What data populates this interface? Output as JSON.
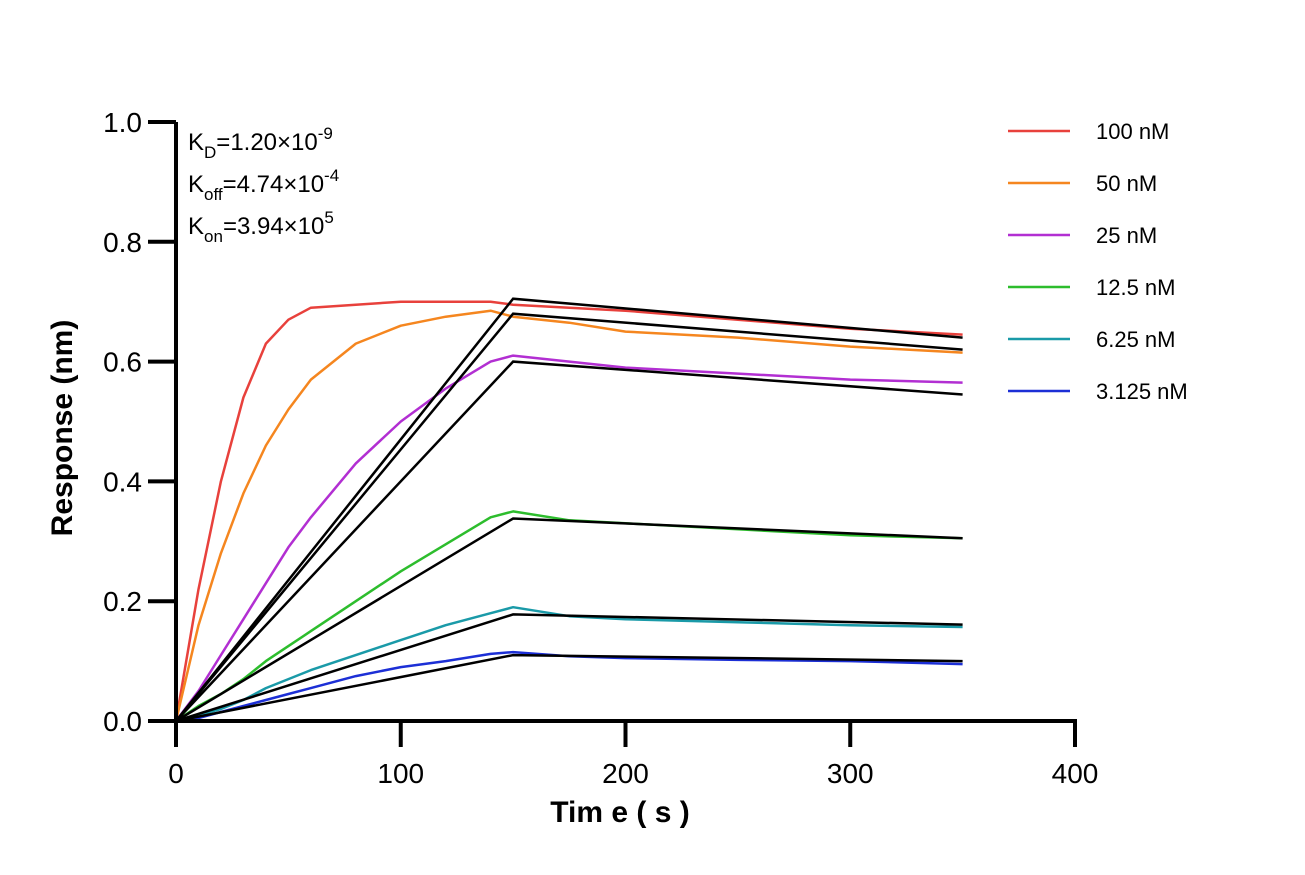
{
  "chart_data": {
    "type": "line",
    "xlabel": "Tim e ( s )",
    "ylabel": "Response (nm)",
    "xlim": [
      0,
      400
    ],
    "ylim": [
      0,
      1.0
    ],
    "x_ticks": [
      "0",
      "100",
      "200",
      "300",
      "400"
    ],
    "y_ticks": [
      "0.0",
      "0.2",
      "0.4",
      "0.6",
      "0.8",
      "1.0"
    ],
    "grid": false,
    "legend_position": "top-right",
    "annotations": {
      "kd": {
        "k": "K",
        "sub": "D",
        "eq": "=1.20×10",
        "sup": "-9"
      },
      "koff": {
        "k": "K",
        "sub": "off",
        "eq": "=4.74×10",
        "sup": "-4"
      },
      "kon": {
        "k": "K",
        "sub": "on",
        "eq": "=3.94×10",
        "sup": "5"
      }
    },
    "association_end_s": 150,
    "end_s": 350,
    "series": [
      {
        "name": "100 nM",
        "color": "#e8413c",
        "x": [
          0,
          10,
          20,
          30,
          40,
          50,
          60,
          80,
          100,
          120,
          140,
          150,
          175,
          200,
          250,
          300,
          350
        ],
        "values": [
          0,
          0.22,
          0.4,
          0.54,
          0.63,
          0.67,
          0.69,
          0.695,
          0.7,
          0.7,
          0.7,
          0.695,
          0.69,
          0.685,
          0.67,
          0.655,
          0.645
        ]
      },
      {
        "name": "50 nM",
        "color": "#f5861f",
        "x": [
          0,
          10,
          20,
          30,
          40,
          50,
          60,
          80,
          100,
          120,
          140,
          150,
          175,
          200,
          250,
          300,
          350
        ],
        "values": [
          0,
          0.16,
          0.28,
          0.38,
          0.46,
          0.52,
          0.57,
          0.63,
          0.66,
          0.675,
          0.685,
          0.675,
          0.665,
          0.65,
          0.64,
          0.625,
          0.615
        ]
      },
      {
        "name": "25 nM",
        "color": "#b22fd2",
        "x": [
          0,
          10,
          20,
          30,
          40,
          50,
          60,
          80,
          100,
          120,
          140,
          150,
          175,
          200,
          250,
          300,
          350
        ],
        "values": [
          0,
          0.05,
          0.11,
          0.17,
          0.23,
          0.29,
          0.34,
          0.43,
          0.5,
          0.555,
          0.6,
          0.61,
          0.6,
          0.59,
          0.58,
          0.57,
          0.565
        ]
      },
      {
        "name": "12.5 nM",
        "color": "#2dbd2d",
        "x": [
          0,
          10,
          20,
          30,
          40,
          50,
          60,
          80,
          100,
          120,
          140,
          150,
          175,
          200,
          250,
          300,
          350
        ],
        "values": [
          0,
          0.025,
          0.045,
          0.07,
          0.1,
          0.125,
          0.15,
          0.2,
          0.25,
          0.295,
          0.34,
          0.35,
          0.335,
          0.33,
          0.32,
          0.31,
          0.305
        ]
      },
      {
        "name": "6.25 nM",
        "color": "#1a9aa8",
        "x": [
          0,
          10,
          20,
          30,
          40,
          50,
          60,
          80,
          100,
          120,
          140,
          150,
          175,
          200,
          250,
          300,
          350
        ],
        "values": [
          0,
          0.01,
          0.02,
          0.035,
          0.055,
          0.07,
          0.085,
          0.11,
          0.135,
          0.16,
          0.18,
          0.19,
          0.175,
          0.17,
          0.165,
          0.16,
          0.157
        ]
      },
      {
        "name": "3.125 nM",
        "color": "#1c2fd6",
        "x": [
          0,
          10,
          20,
          30,
          40,
          50,
          60,
          80,
          100,
          120,
          140,
          150,
          175,
          200,
          250,
          300,
          350
        ],
        "values": [
          0,
          0.005,
          0.015,
          0.025,
          0.035,
          0.045,
          0.055,
          0.075,
          0.09,
          0.1,
          0.112,
          0.115,
          0.108,
          0.105,
          0.102,
          0.1,
          0.095
        ]
      }
    ],
    "fits": [
      {
        "x": [
          0,
          150,
          350
        ],
        "values": [
          0,
          0.705,
          0.64
        ]
      },
      {
        "x": [
          0,
          150,
          350
        ],
        "values": [
          0,
          0.68,
          0.62
        ]
      },
      {
        "x": [
          0,
          150,
          350
        ],
        "values": [
          0,
          0.6,
          0.545
        ]
      },
      {
        "x": [
          0,
          150,
          350
        ],
        "values": [
          0,
          0.338,
          0.305
        ]
      },
      {
        "x": [
          0,
          150,
          350
        ],
        "values": [
          0,
          0.178,
          0.161
        ]
      },
      {
        "x": [
          0,
          150,
          350
        ],
        "values": [
          0,
          0.11,
          0.1
        ]
      }
    ],
    "fit_color": "#000000"
  }
}
